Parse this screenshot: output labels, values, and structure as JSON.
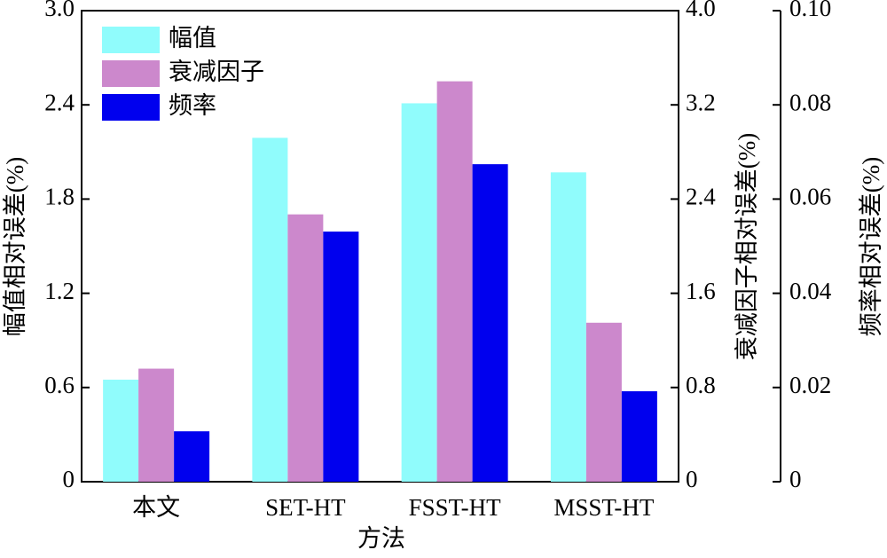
{
  "chart_data": {
    "type": "bar",
    "x_label": "方法",
    "y_label": "幅值相对误差(%)",
    "y2_label": "衰减因子相对误差(%)",
    "y3_label": "频率相对误差(%)",
    "categories": [
      "本文",
      "SET-HT",
      "FSST-HT",
      "MSST-HT"
    ],
    "series": [
      {
        "name": "幅值",
        "color": "#90fcfc",
        "values": [
          0.65,
          2.19,
          2.41,
          1.97
        ]
      },
      {
        "name": "衰减因子",
        "color": "#cc88cc",
        "axis": "y2",
        "values": [
          0.96,
          2.27,
          3.4,
          1.35
        ]
      },
      {
        "name": "频率",
        "color": "#0000ee",
        "axis": "y3",
        "values": [
          0.0107,
          0.0531,
          0.0674,
          0.0192
        ]
      }
    ],
    "ylim": [
      0,
      3
    ],
    "yticks": [
      0,
      0.6,
      1.2,
      1.8,
      2.4,
      {
        "value": 3,
        "label": "3.0"
      }
    ],
    "y2lim": [
      0,
      4
    ],
    "y2ticks": [
      0,
      0.8,
      1.6,
      2.4,
      3.2,
      {
        "value": 4,
        "label": "4.0"
      }
    ],
    "y3lim": [
      0,
      0.1
    ],
    "y3ticks": [
      0,
      0.02,
      0.04,
      0.06,
      0.08,
      {
        "value": 0.1,
        "label": "0.10"
      }
    ],
    "legend": "upper-left"
  }
}
